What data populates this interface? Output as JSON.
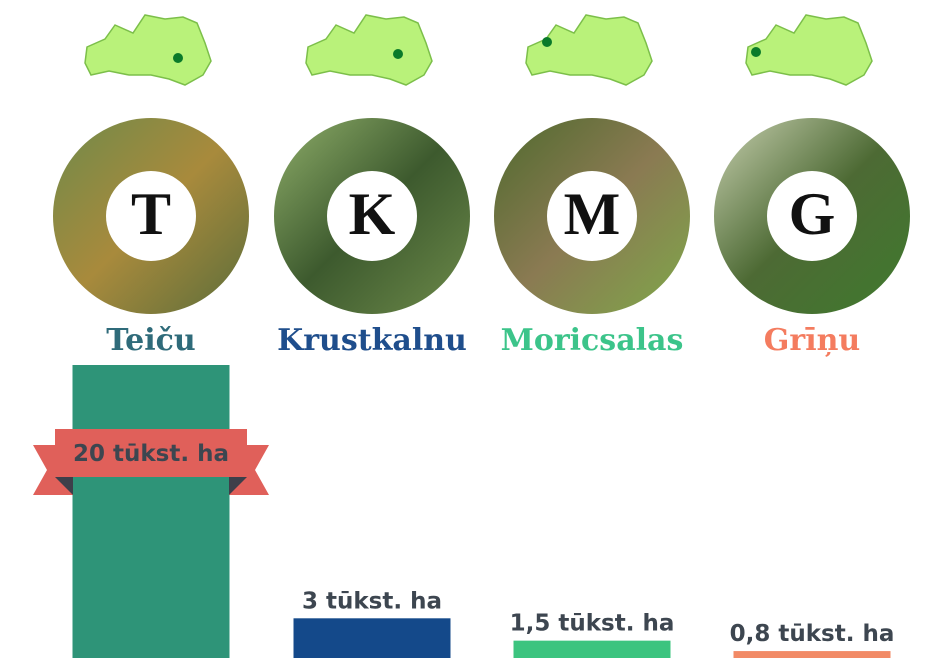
{
  "chart_data": {
    "type": "bar",
    "categories": [
      "Teiču",
      "Krustkalnu",
      "Moricsalas",
      "Grīņu"
    ],
    "letters": [
      "T",
      "K",
      "M",
      "G"
    ],
    "values": [
      20,
      3,
      1.5,
      0.8
    ],
    "value_labels": [
      "20 tūkst. ha",
      "3 tūkst. ha",
      "1,5 tūkst. ha",
      "0,8 tūkst. ha"
    ],
    "colors": [
      "#2e9478",
      "#14498a",
      "#3cc47f",
      "#f28a66"
    ],
    "label_colors": [
      "#2f6b7a",
      "#1f4e8c",
      "#3cc48a",
      "#f47c5f"
    ]
  }
}
